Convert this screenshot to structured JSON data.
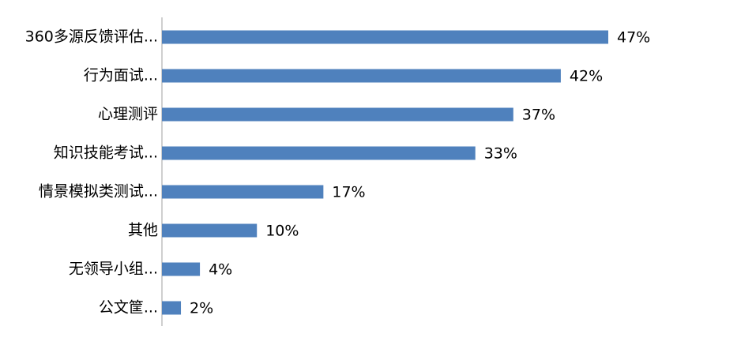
{
  "chart_data": {
    "type": "bar",
    "orientation": "horizontal",
    "categories": [
      "360多源反馈评估...",
      "行为面试...",
      "心理测评",
      "知识技能考试...",
      "情景模拟类测试...",
      "其他",
      "无领导小组...",
      "公文筐..."
    ],
    "values": [
      47,
      42,
      37,
      33,
      17,
      10,
      4,
      2
    ],
    "value_labels": [
      "47%",
      "42%",
      "37%",
      "33%",
      "17%",
      "10%",
      "4%",
      "2%"
    ],
    "color": "#4f81bd"
  }
}
